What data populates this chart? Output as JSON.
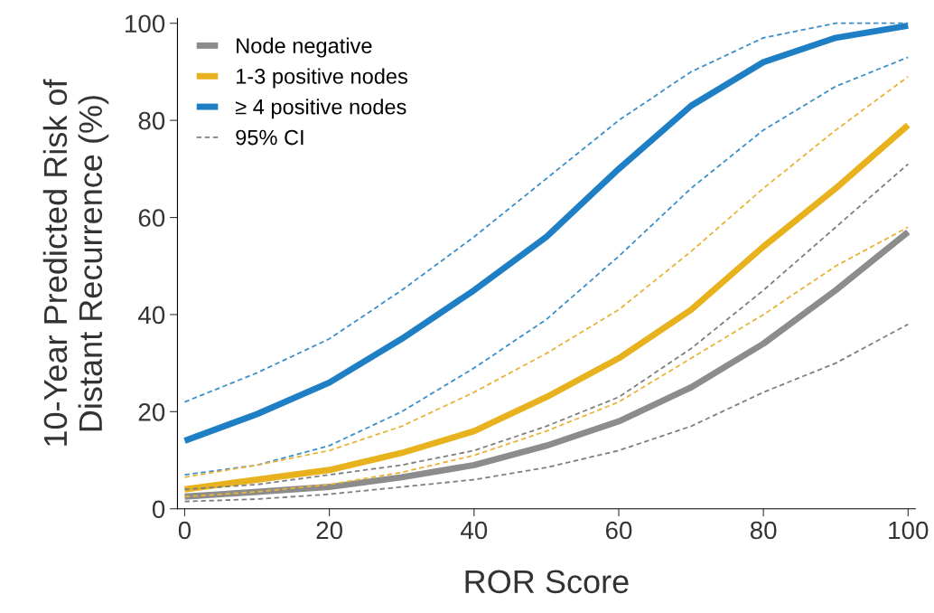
{
  "chart_data": {
    "type": "line",
    "xlabel": "ROR Score",
    "ylabel": "10-Year Predicted Risk of\nDistant Recurrence (%)",
    "x": [
      0,
      10,
      20,
      30,
      40,
      50,
      60,
      70,
      80,
      90,
      100
    ],
    "xlim": [
      -1,
      101
    ],
    "ylim": [
      0,
      101
    ],
    "xticks": [
      0,
      20,
      40,
      60,
      80,
      100
    ],
    "yticks": [
      0,
      20,
      40,
      60,
      80,
      100
    ],
    "grid": false,
    "legend": "top left",
    "marker": "none",
    "series": [
      {
        "color": "#3c8fc9",
        "line_style": "dashed",
        "values": [
          22,
          28,
          35,
          45,
          56,
          68,
          80,
          90,
          97,
          100,
          100
        ]
      },
      {
        "color": "#3c8fc9",
        "line_style": "dashed",
        "values": [
          7,
          9,
          13,
          20,
          29,
          39,
          52,
          66,
          78,
          87,
          93
        ]
      },
      {
        "color": "#e8b43a",
        "line_style": "dashed",
        "values": [
          6.5,
          9,
          12,
          17,
          24,
          32,
          41,
          53,
          66,
          78,
          89
        ]
      },
      {
        "color": "#e8b43a",
        "line_style": "dashed",
        "values": [
          2.5,
          3.5,
          5,
          7.5,
          11,
          16,
          22,
          31,
          40,
          50,
          58
        ]
      },
      {
        "name": "95% CI",
        "color": "#7f7f7f",
        "line_style": "dashed",
        "values": [
          4,
          5,
          7,
          9,
          12,
          17,
          23,
          33,
          45,
          58,
          71
        ]
      },
      {
        "color": "#7f7f7f",
        "line_style": "dashed",
        "values": [
          1.5,
          2,
          3,
          4.5,
          6,
          8.5,
          12,
          17,
          24,
          30,
          38
        ]
      },
      {
        "name": "Node negative",
        "color": "#8c8c8c",
        "line_style": "solid",
        "values": [
          2.5,
          3.5,
          4.5,
          6.5,
          9,
          13,
          18,
          25,
          34,
          45,
          57
        ]
      },
      {
        "name": "1-3 positive nodes",
        "color": "#e8b21e",
        "line_style": "solid",
        "values": [
          4,
          6,
          8,
          11.5,
          16,
          23,
          31,
          41,
          54,
          66,
          79
        ]
      },
      {
        "name": "≥ 4 positive nodes",
        "color": "#1f7fc4",
        "line_style": "solid",
        "values": [
          14,
          19.5,
          26,
          35,
          45,
          56,
          70,
          83,
          92,
          97,
          99.5
        ]
      }
    ]
  }
}
